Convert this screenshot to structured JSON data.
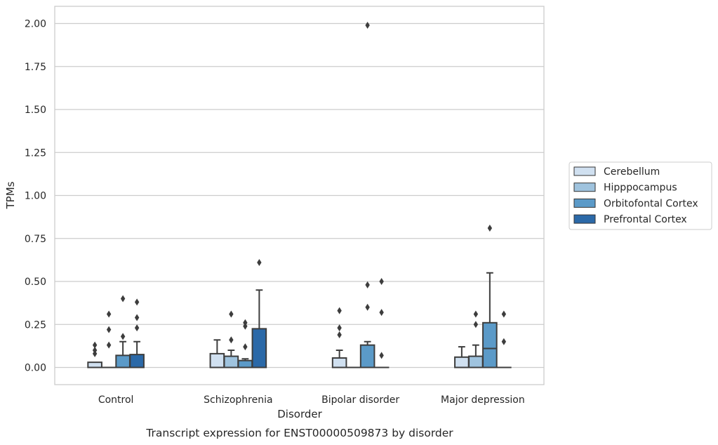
{
  "chart_data": {
    "type": "box",
    "title": "",
    "caption": "Transcript expression for ENST00000509873 by disorder",
    "xlabel": "Disorder",
    "ylabel": "TPMs",
    "ylim": [
      -0.1,
      2.1
    ],
    "yticks": [
      "0.00",
      "0.25",
      "0.50",
      "0.75",
      "1.00",
      "1.25",
      "1.50",
      "1.75",
      "2.00"
    ],
    "grid": "horizontal",
    "legend_position": "right",
    "categories": [
      "Control",
      "Schizophrenia",
      "Bipolar disorder",
      "Major depression"
    ],
    "series": [
      {
        "name": "Cerebellum",
        "color": "#d0e0f0",
        "boxes": [
          {
            "q1": 0.0,
            "median": 0.0,
            "q3": 0.03,
            "whisker_low": 0.0,
            "whisker_high": 0.03,
            "outliers": [
              0.08,
              0.1,
              0.13
            ]
          },
          {
            "q1": 0.0,
            "median": 0.0,
            "q3": 0.08,
            "whisker_low": 0.0,
            "whisker_high": 0.16,
            "outliers": []
          },
          {
            "q1": 0.0,
            "median": 0.0,
            "q3": 0.055,
            "whisker_low": 0.0,
            "whisker_high": 0.1,
            "outliers": [
              0.19,
              0.23,
              0.33
            ]
          },
          {
            "q1": 0.0,
            "median": 0.0,
            "q3": 0.06,
            "whisker_low": 0.0,
            "whisker_high": 0.12,
            "outliers": []
          }
        ]
      },
      {
        "name": "Hipppocampus",
        "color": "#9fc3de",
        "boxes": [
          {
            "q1": 0.0,
            "median": 0.0,
            "q3": 0.0,
            "whisker_low": 0.0,
            "whisker_high": 0.0,
            "outliers": [
              0.13,
              0.22,
              0.31
            ]
          },
          {
            "q1": 0.0,
            "median": 0.0,
            "q3": 0.065,
            "whisker_low": 0.0,
            "whisker_high": 0.1,
            "outliers": [
              0.16,
              0.31
            ]
          },
          {
            "q1": 0.0,
            "median": 0.0,
            "q3": 0.0,
            "whisker_low": 0.0,
            "whisker_high": 0.0,
            "outliers": []
          },
          {
            "q1": 0.0,
            "median": 0.0,
            "q3": 0.065,
            "whisker_low": 0.0,
            "whisker_high": 0.13,
            "outliers": [
              0.25,
              0.31
            ]
          }
        ]
      },
      {
        "name": "Orbitofontal Cortex",
        "color": "#5b9ac8",
        "boxes": [
          {
            "q1": 0.0,
            "median": 0.0,
            "q3": 0.07,
            "whisker_low": 0.0,
            "whisker_high": 0.15,
            "outliers": [
              0.18,
              0.4
            ]
          },
          {
            "q1": 0.0,
            "median": 0.0,
            "q3": 0.04,
            "whisker_low": 0.0,
            "whisker_high": 0.05,
            "outliers": [
              0.12,
              0.24,
              0.26
            ]
          },
          {
            "q1": 0.0,
            "median": 0.0,
            "q3": 0.13,
            "whisker_low": 0.0,
            "whisker_high": 0.15,
            "outliers": [
              0.35,
              0.48,
              1.99
            ]
          },
          {
            "q1": 0.0,
            "median": 0.11,
            "q3": 0.26,
            "whisker_low": 0.0,
            "whisker_high": 0.55,
            "outliers": [
              0.81
            ]
          }
        ]
      },
      {
        "name": "Prefrontal Cortex",
        "color": "#2b69a8",
        "boxes": [
          {
            "q1": 0.0,
            "median": 0.0,
            "q3": 0.075,
            "whisker_low": 0.0,
            "whisker_high": 0.15,
            "outliers": [
              0.23,
              0.29,
              0.38
            ]
          },
          {
            "q1": 0.0,
            "median": 0.0,
            "q3": 0.225,
            "whisker_low": 0.0,
            "whisker_high": 0.45,
            "outliers": [
              0.61
            ]
          },
          {
            "q1": 0.0,
            "median": 0.0,
            "q3": 0.0,
            "whisker_low": 0.0,
            "whisker_high": 0.0,
            "outliers": [
              0.07,
              0.32,
              0.5
            ]
          },
          {
            "q1": 0.0,
            "median": 0.0,
            "q3": 0.0,
            "whisker_low": 0.0,
            "whisker_high": 0.0,
            "outliers": [
              0.15,
              0.31
            ]
          }
        ]
      }
    ],
    "colors": {
      "grid": "#cccccc",
      "frame": "#cccccc",
      "box_edge": "#3d3d3d",
      "outlier": "#3d3d3d"
    }
  }
}
